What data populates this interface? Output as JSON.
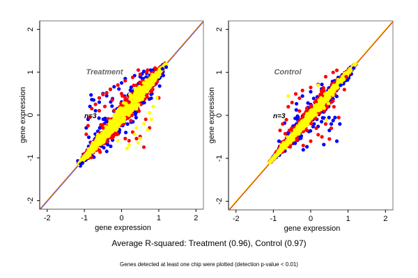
{
  "chart_data": {
    "type": "scatter",
    "title": "Average R-squared: Treatment (0.96), Control (0.97)",
    "footnote": "Genes detected at least one chip were plotted (detection p-value < 0.01)",
    "colors": {
      "blue": "#0000ff",
      "red": "#ff0000",
      "yellow": "#ffff00",
      "diag_orange": "#ff8c00",
      "diag_blue": "#4040ff",
      "diag_red": "#cc0000",
      "diag_yellow": "#ffdd00"
    },
    "panels": [
      {
        "title": "Treatment",
        "n_label": "n=3",
        "xlabel": "gene expression",
        "ylabel": "gene expression",
        "xlim": [
          -2.2,
          2.2
        ],
        "ylim": [
          -2.2,
          2.2
        ],
        "xticks": [
          "-2",
          "-1",
          "0",
          "1",
          "2"
        ],
        "yticks": [
          "-2",
          "-1",
          "0",
          "1",
          "2"
        ],
        "tick_values": [
          -2,
          -1,
          0,
          1,
          2
        ],
        "cloud": {
          "x_range": [
            -1.15,
            1.2
          ],
          "center_spread": [
            0.35,
            0.22,
            0.12
          ]
        },
        "series": [
          {
            "name": "blue",
            "color": "#0000ff",
            "points": [
              [
                -0.82,
                0.47
              ],
              [
                -0.8,
                0.36
              ],
              [
                -0.75,
                0.35
              ],
              [
                -0.85,
                0.2
              ],
              [
                -0.9,
                -0.1
              ],
              [
                -0.95,
                -0.3
              ],
              [
                -0.7,
                0.1
              ],
              [
                -0.6,
                0.3
              ],
              [
                -0.5,
                0.5
              ],
              [
                -0.3,
                0.6
              ],
              [
                0.1,
                0.85
              ],
              [
                0.35,
                0.92
              ],
              [
                0.6,
                1.02
              ],
              [
                1.1,
                1.08
              ],
              [
                1.2,
                1.12
              ],
              [
                -1.1,
                -1.15
              ],
              [
                -1.05,
                -1.12
              ],
              [
                -0.88,
                -0.52
              ],
              [
                -0.4,
                0.45
              ],
              [
                -0.2,
                0.66
              ],
              [
                0.0,
                0.75
              ],
              [
                0.55,
                0.96
              ],
              [
                0.78,
                1.05
              ]
            ]
          },
          {
            "name": "red",
            "color": "#ff0000",
            "points": [
              [
                -0.95,
                -0.45
              ],
              [
                -0.9,
                -0.25
              ],
              [
                -0.85,
                -0.05
              ],
              [
                -0.8,
                0.15
              ],
              [
                -0.7,
                0.25
              ],
              [
                -0.6,
                0.4
              ],
              [
                -0.5,
                0.48
              ],
              [
                -0.4,
                0.52
              ],
              [
                -0.3,
                0.6
              ],
              [
                -0.1,
                0.7
              ],
              [
                0.1,
                0.8
              ],
              [
                0.3,
                0.88
              ],
              [
                0.5,
                0.95
              ],
              [
                0.7,
                1.05
              ],
              [
                0.9,
                1.1
              ],
              [
                0.67,
                1.0
              ],
              [
                0.45,
                1.05
              ],
              [
                -0.6,
                0.1
              ],
              [
                -0.45,
                0.2
              ],
              [
                0.4,
                -0.55
              ],
              [
                0.2,
                -0.6
              ],
              [
                0.6,
                -0.75
              ],
              [
                0.5,
                -0.5
              ],
              [
                0.75,
                -0.3
              ],
              [
                0.8,
                0.55
              ],
              [
                1.0,
                0.4
              ],
              [
                0.1,
                -0.55
              ],
              [
                -0.15,
                -0.45
              ],
              [
                -0.5,
                -0.3
              ],
              [
                0.3,
                -0.4
              ],
              [
                0.65,
                -0.1
              ],
              [
                0.2,
                0.3
              ],
              [
                -0.25,
                0.35
              ],
              [
                0.0,
                0.5
              ]
            ]
          },
          {
            "name": "yellow",
            "color": "#ffff00",
            "points": [
              [
                0.2,
                -0.7
              ],
              [
                0.5,
                -0.55
              ],
              [
                0.45,
                -0.65
              ],
              [
                0.7,
                -0.35
              ],
              [
                0.8,
                -0.1
              ],
              [
                0.85,
                0.2
              ],
              [
                0.95,
                0.4
              ],
              [
                0.6,
                -0.2
              ],
              [
                0.15,
                -0.78
              ],
              [
                -0.1,
                -0.6
              ],
              [
                0.35,
                -0.45
              ],
              [
                0.75,
                0.05
              ],
              [
                0.4,
                -0.3
              ]
            ]
          }
        ],
        "diagonals": [
          "diag_blue",
          "diag_orange"
        ]
      },
      {
        "title": "Control",
        "n_label": "n=3",
        "xlabel": "gene expression",
        "ylabel": "gene expression",
        "xlim": [
          -2.2,
          2.2
        ],
        "ylim": [
          -2.2,
          2.2
        ],
        "xticks": [
          "-2",
          "-1",
          "0",
          "1",
          "2"
        ],
        "yticks": [
          "-2",
          "-1",
          "0",
          "1",
          "2"
        ],
        "tick_values": [
          -2,
          -1,
          0,
          1,
          2
        ],
        "cloud": {
          "x_range": [
            -1.1,
            1.2
          ],
          "center_spread": [
            0.25,
            0.15,
            0.08
          ]
        },
        "series": [
          {
            "name": "blue",
            "color": "#0000ff",
            "points": [
              [
                0.7,
                -0.6
              ],
              [
                0.35,
                -0.68
              ],
              [
                -0.1,
                -0.73
              ],
              [
                -0.2,
                -0.8
              ],
              [
                0.55,
                -0.2
              ],
              [
                0.6,
                -0.12
              ],
              [
                0.78,
                -0.2
              ],
              [
                -0.38,
                0.27
              ],
              [
                -0.22,
                0.45
              ],
              [
                -0.7,
                -0.18
              ],
              [
                -0.85,
                -0.6
              ],
              [
                0.0,
                0.55
              ],
              [
                0.3,
                0.72
              ],
              [
                0.5,
                -0.35
              ],
              [
                0.65,
                -0.05
              ],
              [
                0.8,
                0.7
              ],
              [
                1.15,
                1.1
              ]
            ]
          },
          {
            "name": "red",
            "color": "#ff0000",
            "points": [
              [
                -0.22,
                0.58
              ],
              [
                -0.4,
                0.5
              ],
              [
                -0.6,
                0.2
              ],
              [
                -0.75,
                -0.2
              ],
              [
                -0.82,
                -0.35
              ],
              [
                -0.5,
                0.3
              ],
              [
                -0.3,
                0.4
              ],
              [
                0.0,
                0.65
              ],
              [
                0.2,
                0.72
              ],
              [
                0.4,
                0.9
              ],
              [
                0.6,
                1.0
              ],
              [
                0.7,
                1.05
              ],
              [
                0.5,
                -0.55
              ],
              [
                0.3,
                -0.5
              ],
              [
                0.2,
                -0.45
              ],
              [
                0.0,
                -0.6
              ],
              [
                -0.2,
                -0.7
              ],
              [
                0.55,
                -0.3
              ],
              [
                0.62,
                0.2
              ],
              [
                0.75,
                -0.05
              ],
              [
                -0.1,
                -0.35
              ],
              [
                0.9,
                0.6
              ],
              [
                0.95,
                0.9
              ],
              [
                -0.65,
                -0.1
              ],
              [
                0.15,
                -0.3
              ],
              [
                0.4,
                -0.2
              ],
              [
                -0.3,
                0.1
              ]
            ]
          },
          {
            "name": "yellow",
            "color": "#ffff00",
            "points": [
              [
                -0.6,
                0.45
              ],
              [
                0.2,
                0.7
              ],
              [
                0.42,
                -0.1
              ]
            ]
          }
        ],
        "diagonals": [
          "diag_red",
          "diag_yellow"
        ]
      }
    ]
  }
}
